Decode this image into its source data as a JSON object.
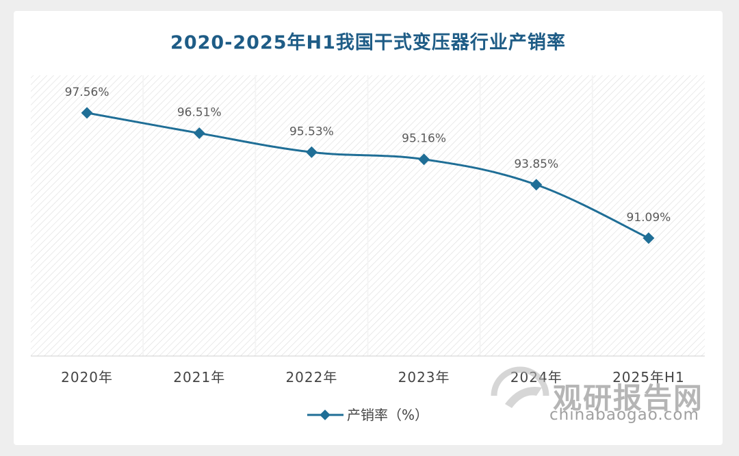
{
  "chart_data": {
    "type": "line",
    "title": "2020-2025年H1我国干式变压器行业产销率",
    "categories": [
      "2020年",
      "2021年",
      "2022年",
      "2023年",
      "2024年",
      "2025年H1"
    ],
    "series": [
      {
        "name": "产销率（%）",
        "values": [
          97.56,
          96.51,
          95.53,
          95.16,
          93.85,
          91.09
        ],
        "data_labels": [
          "97.56%",
          "96.51%",
          "95.53%",
          "95.16%",
          "93.85%",
          "91.09%"
        ],
        "color": "#1f6e96"
      }
    ],
    "ylim": [
      85,
      99.5
    ],
    "grid": false,
    "legend": "bottom"
  },
  "watermark": {
    "name": "观研报告网",
    "url": "chinabaogao.com"
  }
}
